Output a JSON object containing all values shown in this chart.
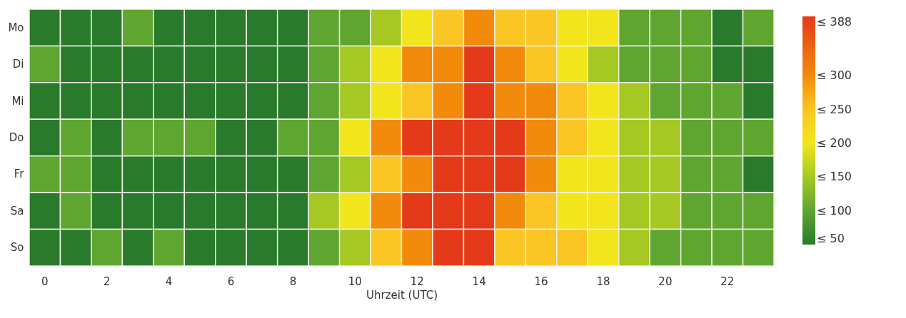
{
  "chart_data": {
    "type": "heatmap",
    "xlabel": "Uhrzeit (UTC)",
    "categories": [
      "0",
      null,
      "2",
      null,
      "4",
      null,
      "6",
      null,
      "8",
      null,
      "10",
      null,
      "12",
      null,
      "14",
      null,
      "16",
      null,
      "18",
      null,
      "20",
      null,
      "22",
      null
    ],
    "y_categories": [
      "Mo",
      "Di",
      "Mi",
      "Do",
      "Fr",
      "Sa",
      "So"
    ],
    "cells": [
      [
        50,
        50,
        50,
        100,
        50,
        50,
        50,
        50,
        50,
        100,
        100,
        150,
        200,
        250,
        300,
        250,
        250,
        200,
        200,
        100,
        100,
        100,
        50,
        100
      ],
      [
        100,
        50,
        50,
        50,
        50,
        50,
        50,
        50,
        50,
        100,
        150,
        200,
        300,
        300,
        388,
        300,
        250,
        200,
        150,
        100,
        100,
        100,
        50,
        50
      ],
      [
        50,
        50,
        50,
        50,
        50,
        50,
        50,
        50,
        50,
        100,
        150,
        200,
        250,
        300,
        388,
        300,
        300,
        250,
        200,
        150,
        100,
        100,
        100,
        50
      ],
      [
        50,
        100,
        50,
        100,
        100,
        100,
        50,
        50,
        100,
        100,
        200,
        300,
        388,
        388,
        388,
        388,
        300,
        250,
        200,
        150,
        150,
        100,
        100,
        100
      ],
      [
        100,
        100,
        50,
        50,
        50,
        50,
        50,
        50,
        50,
        100,
        150,
        250,
        300,
        388,
        388,
        388,
        300,
        200,
        200,
        150,
        150,
        100,
        100,
        50
      ],
      [
        50,
        100,
        50,
        50,
        50,
        50,
        50,
        50,
        50,
        150,
        200,
        300,
        388,
        388,
        388,
        300,
        250,
        200,
        200,
        150,
        150,
        100,
        100,
        100
      ],
      [
        50,
        50,
        100,
        50,
        100,
        50,
        50,
        50,
        50,
        100,
        150,
        250,
        300,
        388,
        388,
        250,
        250,
        250,
        200,
        150,
        100,
        100,
        100,
        100
      ]
    ],
    "cticks": [
      {
        "value": 50,
        "label": "≤ 50"
      },
      {
        "value": 100,
        "label": "≤ 100"
      },
      {
        "value": 150,
        "label": "≤ 150"
      },
      {
        "value": 200,
        "label": "≤ 200"
      },
      {
        "value": 250,
        "label": "≤ 250"
      },
      {
        "value": 300,
        "label": "≤ 300"
      },
      {
        "value": 388,
        "label": "≤ 388"
      }
    ],
    "colors": [
      "#2a7a2c",
      "#5ea62f",
      "#a5c822",
      "#f2e51b",
      "#fbc623",
      "#f28a0c",
      "#e53a1a"
    ]
  }
}
